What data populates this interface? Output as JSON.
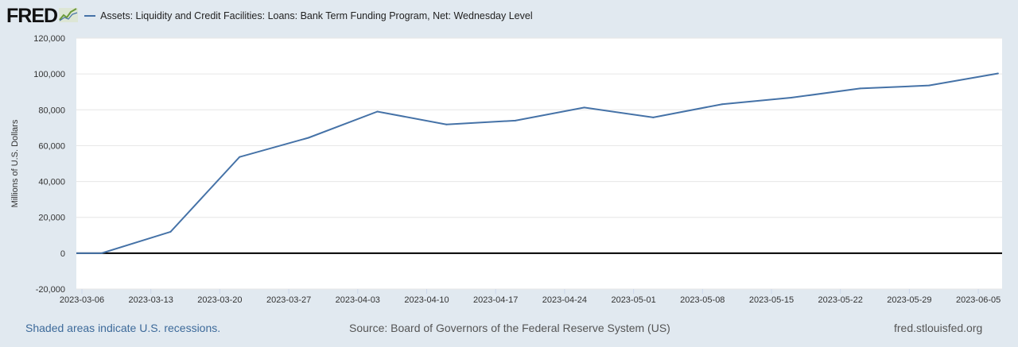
{
  "header": {
    "logo_text": "FRED",
    "logo_icon": "chart-line-icon",
    "series_title": "Assets: Liquidity and Credit Facilities: Loans: Bank Term Funding Program, Net: Wednesday Level"
  },
  "footer": {
    "recessions_note": "Shaded areas indicate U.S. recessions.",
    "source": "Source: Board of Governors of the Federal Reserve System (US)",
    "site": "fred.stlouisfed.org"
  },
  "colors": {
    "series": "#4572a7",
    "background": "#e1e9f0",
    "plot": "#ffffff"
  },
  "chart_data": {
    "type": "line",
    "title": "Assets: Liquidity and Credit Facilities: Loans: Bank Term Funding Program, Net: Wednesday Level",
    "ylabel": "Millions of U.S. Dollars",
    "xlabel": "",
    "ylim": [
      -20000,
      120000
    ],
    "xlim": [
      "2023-03-05",
      "2023-06-07"
    ],
    "grid": true,
    "legend": "top-left",
    "yticks": [
      "-20,000",
      "0",
      "20,000",
      "40,000",
      "60,000",
      "80,000",
      "100,000",
      "120,000"
    ],
    "ytick_values": [
      -20000,
      0,
      20000,
      40000,
      60000,
      80000,
      100000,
      120000
    ],
    "xticks": [
      "2023-03-06",
      "2023-03-13",
      "2023-03-20",
      "2023-03-27",
      "2023-04-03",
      "2023-04-10",
      "2023-04-17",
      "2023-04-24",
      "2023-05-01",
      "2023-05-08",
      "2023-05-15",
      "2023-05-22",
      "2023-05-29",
      "2023-06-05"
    ],
    "series": [
      {
        "name": "Assets: Liquidity and Credit Facilities: Loans: Bank Term Funding Program, Net: Wednesday Level",
        "x": [
          "2023-03-01",
          "2023-03-08",
          "2023-03-15",
          "2023-03-22",
          "2023-03-29",
          "2023-04-05",
          "2023-04-12",
          "2023-04-19",
          "2023-04-26",
          "2023-05-03",
          "2023-05-10",
          "2023-05-17",
          "2023-05-24",
          "2023-05-31",
          "2023-06-07"
        ],
        "values": [
          0,
          0,
          11943,
          53669,
          64403,
          79021,
          71838,
          73980,
          81265,
          75779,
          83131,
          86764,
          91901,
          93581,
          100300
        ]
      }
    ]
  }
}
